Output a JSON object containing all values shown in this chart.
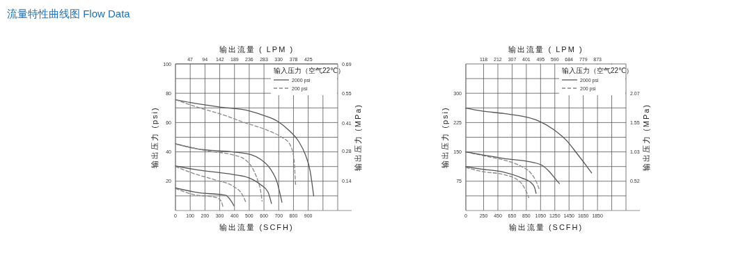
{
  "chart_data": [
    {
      "type": "line",
      "title": "流量特性曲线图 Flow Data",
      "xlabel": "输出流量 (SCFH)",
      "x2label": "输出流量 ( LPM )",
      "ylabel": "输出压力 (psi)",
      "y2label": "输出压力 (MPa)",
      "legend_title": "输入压力（空气22℃）",
      "xlim": [
        0,
        1100
      ],
      "xticks": [
        0,
        100,
        200,
        300,
        400,
        500,
        600,
        700,
        800,
        900,
        {
          "value": 1000,
          "label": null
        }
      ],
      "x2lim": [
        0,
        519.1
      ],
      "x2ticks": [
        47,
        94,
        142,
        189,
        236,
        283,
        330,
        378,
        425
      ],
      "ylim": [
        0,
        100
      ],
      "yticks": [
        {
          "value": 10,
          "label": null
        },
        20,
        {
          "value": 30,
          "label": null
        },
        40,
        {
          "value": 50,
          "label": null
        },
        60,
        {
          "value": 70,
          "label": null
        },
        80,
        {
          "value": 90,
          "label": null
        },
        100
      ],
      "y2lim": [
        0,
        0.69
      ],
      "y2ticks": [
        0.14,
        0.28,
        0.41,
        0.55,
        0.69
      ],
      "grid": true,
      "legend": "top right",
      "series": [
        {
          "name": "2000 psi",
          "color": "#555555",
          "line_style": "solid",
          "x": [
            0,
            103,
            310,
            500,
            595,
            690,
            770,
            833,
            881,
            913,
            937
          ],
          "values": [
            75.6,
            73.6,
            70.4,
            68,
            65,
            61,
            54.6,
            47.5,
            38,
            27,
            10
          ]
        },
        {
          "name": "200 psi",
          "color": "#888888",
          "line_style": "dashed",
          "x": [
            0,
            151,
            310,
            468,
            627,
            720,
            770,
            802,
            814
          ],
          "values": [
            75.6,
            70.4,
            65.7,
            60,
            54.6,
            50,
            46,
            36.4,
            17.8
          ]
        },
        {
          "color": "#555555",
          "line_style": "solid",
          "x": [
            0,
            151,
            389,
            516,
            579,
            643,
            690,
            722
          ],
          "values": [
            45.5,
            42,
            40,
            38,
            34.8,
            28.5,
            19,
            5.6
          ]
        },
        {
          "color": "#888888",
          "line_style": "dashed",
          "x": [
            0,
            230,
            389,
            468,
            532,
            563,
            576,
            587
          ],
          "values": [
            45.5,
            40.4,
            38,
            35,
            27,
            19,
            14.3,
            6.4
          ]
        },
        {
          "color": "#555555",
          "line_style": "solid",
          "x": [
            0,
            151,
            389,
            500,
            579,
            627,
            651
          ],
          "values": [
            30.4,
            27.7,
            24.6,
            22.2,
            17.5,
            12.7,
            4.8
          ]
        },
        {
          "color": "#888888",
          "line_style": "dashed",
          "x": [
            0,
            119,
            278,
            389,
            452,
            481
          ],
          "values": [
            30,
            25.4,
            20.6,
            16.7,
            11,
            4.8
          ]
        },
        {
          "color": "#555555",
          "line_style": "solid",
          "x": [
            0,
            151,
            341,
            373,
            397
          ],
          "values": [
            15.4,
            12.3,
            10.4,
            7.2,
            3.2
          ]
        },
        {
          "color": "#888888",
          "line_style": "dashed",
          "x": [
            0,
            119,
            278,
            310,
            322
          ],
          "values": [
            15,
            11,
            8.8,
            6.4,
            2.5
          ]
        }
      ]
    },
    {
      "type": "line",
      "xlabel": "输出流量 (SCFH)",
      "x2label": "输出流量 ( LPM )",
      "ylabel": "输出压力 (psi)",
      "y2label": "输出压力 (MPa)",
      "legend_title": "输入压力（空气22℃）",
      "xlim": [
        0,
        2250
      ],
      "xticks": [
        0,
        250,
        450,
        650,
        850,
        1050,
        1250,
        1450,
        1650,
        1850,
        {
          "value": 2050,
          "label": null
        }
      ],
      "x2lim": [
        0,
        1061.8
      ],
      "x2ticks": [
        118,
        212,
        307,
        401,
        495,
        590,
        684,
        779,
        873
      ],
      "ylim": [
        0,
        375
      ],
      "yticks": [
        {
          "value": 37.5,
          "label": null
        },
        75,
        {
          "value": 112.5,
          "label": null
        },
        150,
        {
          "value": 187.5,
          "label": null
        },
        225,
        {
          "value": 262.5,
          "label": null
        },
        300,
        {
          "value": 337.5,
          "label": null
        }
      ],
      "y2lim": [
        0,
        2.586
      ],
      "y2ticks": [
        0.52,
        1.03,
        1.55,
        2.07
      ],
      "grid": true,
      "legend": "top right",
      "series": [
        {
          "name": "2000 psi",
          "color": "#555555",
          "line_style": "solid",
          "x": [
            0,
            218,
            536,
            853,
            1012,
            1234,
            1425,
            1552,
            1679,
            1768
          ],
          "values": [
            262,
            255,
            248,
            239,
            230,
            207,
            177,
            148,
            118,
            96
          ]
        },
        {
          "name": "200 psi",
          "color": "#888888",
          "line_style": "dashed",
          "x": [
            0,
            282,
            631,
            790,
            917,
            981,
            1028
          ],
          "values": [
            150,
            139,
            124,
            112,
            95,
            77,
            56
          ]
        },
        {
          "color": "#555555",
          "line_style": "solid",
          "x": [
            0,
            218,
            536,
            917,
            1076,
            1171,
            1250,
            1314
          ],
          "values": [
            150,
            143,
            133,
            124,
            115,
            100,
            83,
            69
          ]
        },
        {
          "color": "#555555",
          "line_style": "solid",
          "x": [
            0,
            218,
            536,
            790,
            917,
            965,
            987
          ],
          "values": [
            112,
            106,
            98,
            83,
            71,
            59,
            44
          ]
        },
        {
          "color": "#888888",
          "line_style": "dashed",
          "x": [
            0,
            218,
            536,
            758,
            837,
            885
          ],
          "values": [
            110,
            100,
            92,
            74,
            53,
            33
          ]
        }
      ]
    }
  ]
}
